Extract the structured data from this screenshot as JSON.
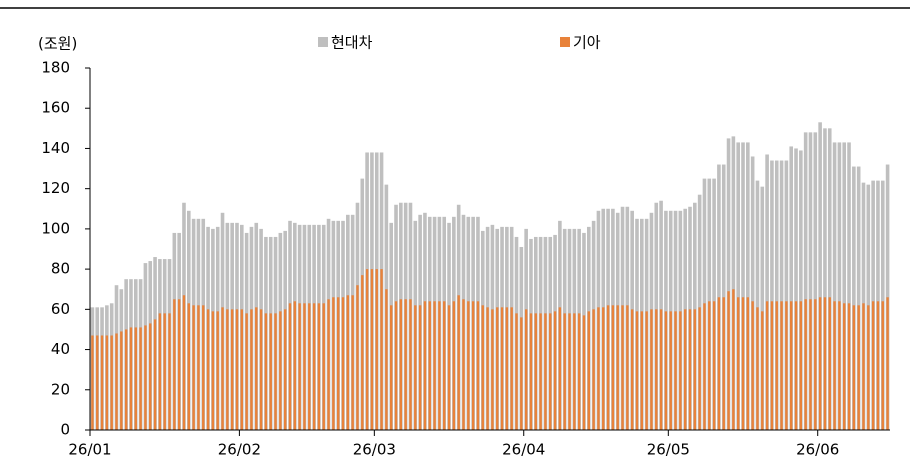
{
  "chart_data": {
    "type": "bar",
    "ylabel": "(조원)",
    "categories": [
      "26/01",
      null,
      null,
      null,
      null,
      null,
      null,
      null,
      null,
      null,
      null,
      null,
      null,
      null,
      null,
      null,
      null,
      null,
      null,
      null,
      null,
      null,
      null,
      null,
      null,
      null,
      null,
      null,
      null,
      null,
      null,
      "26/02",
      null,
      null,
      null,
      null,
      null,
      null,
      null,
      null,
      null,
      null,
      null,
      null,
      null,
      null,
      null,
      null,
      null,
      null,
      null,
      null,
      null,
      null,
      null,
      null,
      null,
      null,
      null,
      "26/03",
      null,
      null,
      null,
      null,
      null,
      null,
      null,
      null,
      null,
      null,
      null,
      null,
      null,
      null,
      null,
      null,
      null,
      null,
      null,
      null,
      null,
      null,
      null,
      null,
      null,
      null,
      null,
      null,
      null,
      null,
      "26/04",
      null,
      null,
      null,
      null,
      null,
      null,
      null,
      null,
      null,
      null,
      null,
      null,
      null,
      null,
      null,
      null,
      null,
      null,
      null,
      null,
      null,
      null,
      null,
      null,
      null,
      null,
      null,
      null,
      null,
      "26/05",
      null,
      null,
      null,
      null,
      null,
      null,
      null,
      null,
      null,
      null,
      null,
      null,
      null,
      null,
      null,
      null,
      null,
      null,
      null,
      null,
      null,
      null,
      null,
      null,
      null,
      null,
      null,
      null,
      null,
      null,
      "26/06",
      null,
      null,
      null,
      null,
      null,
      null,
      null,
      null,
      null,
      null,
      null,
      null,
      null,
      null
    ],
    "series": [
      {
        "name": "현대차",
        "color": "#bfbfbf",
        "values": [
          61,
          61,
          61,
          62,
          63,
          72,
          70,
          75,
          75,
          75,
          75,
          83,
          84,
          86,
          85,
          85,
          85,
          98,
          98,
          113,
          109,
          105,
          105,
          105,
          101,
          100,
          101,
          108,
          103,
          103,
          103,
          102,
          98,
          101,
          103,
          100,
          96,
          96,
          96,
          98,
          99,
          104,
          103,
          102,
          102,
          102,
          102,
          102,
          102,
          105,
          104,
          104,
          104,
          107,
          107,
          113,
          125,
          138,
          138,
          138,
          138,
          122,
          103,
          112,
          113,
          113,
          113,
          104,
          107,
          108,
          106,
          106,
          106,
          106,
          103,
          106,
          112,
          107,
          106,
          106,
          106,
          99,
          101,
          102,
          100,
          101,
          101,
          101,
          96,
          91,
          100,
          95,
          96,
          96,
          96,
          96,
          97,
          104,
          100,
          100,
          100,
          100,
          98,
          101,
          104,
          109,
          110,
          110,
          110,
          108,
          111,
          111,
          109,
          105,
          105,
          105,
          108,
          113,
          114,
          109,
          109,
          109,
          109,
          110,
          111,
          113,
          117,
          125,
          125,
          125,
          132,
          132,
          145,
          146,
          143,
          143,
          143,
          136,
          124,
          121,
          137,
          134,
          134,
          134,
          134,
          141,
          140,
          139,
          148,
          148,
          148,
          153,
          150,
          150,
          143,
          143,
          143,
          143,
          131,
          131,
          123,
          122,
          124,
          124,
          124,
          132
        ]
      },
      {
        "name": "기아",
        "color": "#e8823a",
        "values": [
          47,
          47,
          47,
          47,
          47,
          48,
          49,
          50,
          51,
          51,
          51,
          52,
          53,
          55,
          58,
          58,
          58,
          65,
          65,
          67,
          63,
          62,
          62,
          62,
          60,
          59,
          59,
          61,
          60,
          60,
          60,
          60,
          58,
          60,
          61,
          60,
          58,
          58,
          58,
          59,
          60,
          63,
          64,
          63,
          63,
          63,
          63,
          63,
          63,
          65,
          66,
          66,
          66,
          67,
          67,
          72,
          77,
          80,
          80,
          80,
          80,
          70,
          62,
          64,
          65,
          65,
          65,
          62,
          62,
          64,
          64,
          64,
          64,
          64,
          62,
          64,
          67,
          65,
          64,
          64,
          64,
          62,
          61,
          60,
          61,
          61,
          61,
          61,
          58,
          56,
          60,
          58,
          58,
          58,
          58,
          58,
          59,
          61,
          58,
          58,
          58,
          58,
          57,
          59,
          60,
          61,
          61,
          62,
          62,
          62,
          62,
          62,
          60,
          59,
          59,
          59,
          60,
          60,
          60,
          59,
          59,
          59,
          59,
          60,
          60,
          60,
          61,
          63,
          64,
          64,
          66,
          66,
          69,
          70,
          66,
          66,
          66,
          64,
          61,
          59,
          64,
          64,
          64,
          64,
          64,
          64,
          64,
          64,
          65,
          65,
          65,
          66,
          66,
          66,
          64,
          64,
          63,
          63,
          62,
          62,
          63,
          62,
          64,
          64,
          64,
          66
        ]
      }
    ],
    "ylim": [
      0,
      180
    ],
    "yticks": [
      0,
      20,
      40,
      60,
      80,
      100,
      120,
      140,
      160,
      180
    ]
  }
}
